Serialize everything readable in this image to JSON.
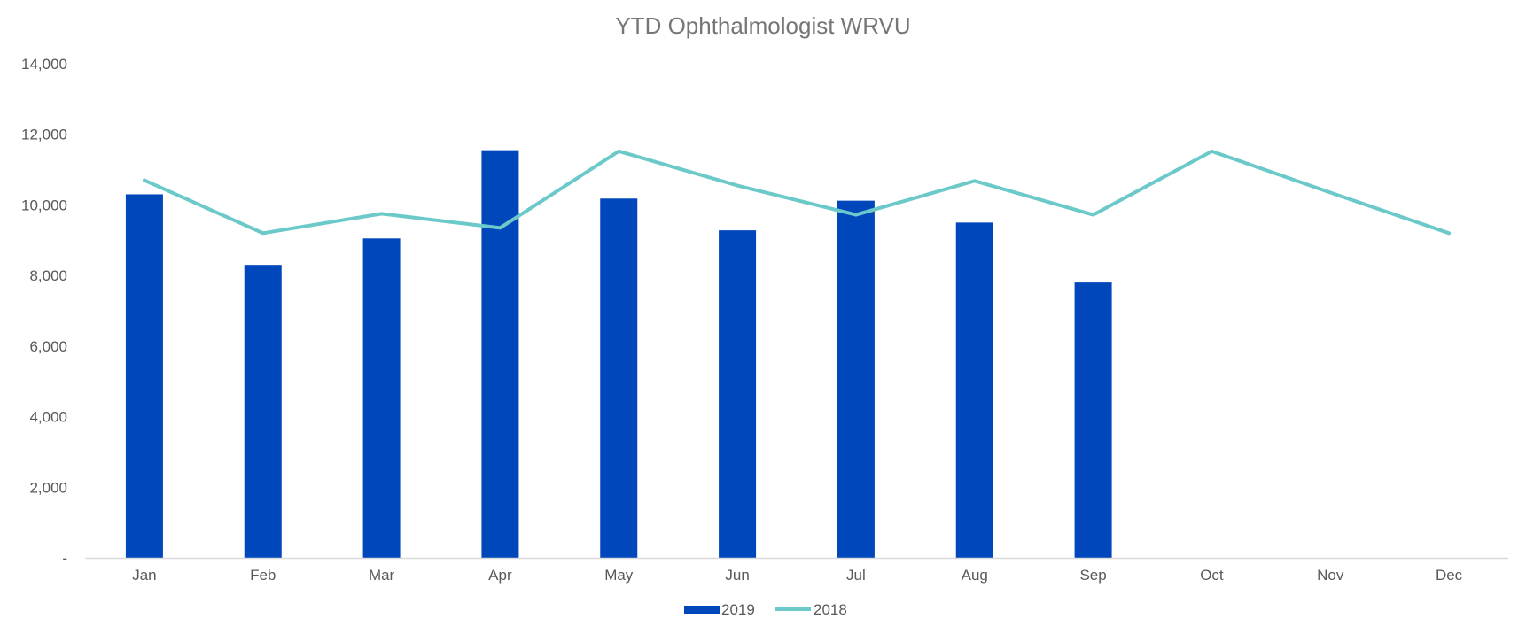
{
  "chart_data": {
    "type": "bar",
    "title": "YTD Ophthalmologist WRVU",
    "xlabel": "",
    "ylabel": "",
    "categories": [
      "Jan",
      "Feb",
      "Mar",
      "Apr",
      "May",
      "Jun",
      "Jul",
      "Aug",
      "Sep",
      "Oct",
      "Nov",
      "Dec"
    ],
    "y_ticks": [
      "-",
      "2,000",
      "4,000",
      "6,000",
      "8,000",
      "10,000",
      "12,000",
      "14,000"
    ],
    "ylim": [
      0,
      14000
    ],
    "grid": false,
    "legend_position": "bottom",
    "series": [
      {
        "name": "2019",
        "type": "bar",
        "color": "#0047BB",
        "values": [
          10300,
          8300,
          9050,
          11550,
          10180,
          9280,
          10120,
          9500,
          7800,
          null,
          null,
          null
        ]
      },
      {
        "name": "2018",
        "type": "line",
        "color": "#6CC9C9",
        "values": [
          10700,
          9200,
          9750,
          9350,
          11520,
          10550,
          9720,
          10680,
          9720,
          11520,
          10350,
          9200
        ]
      }
    ]
  }
}
